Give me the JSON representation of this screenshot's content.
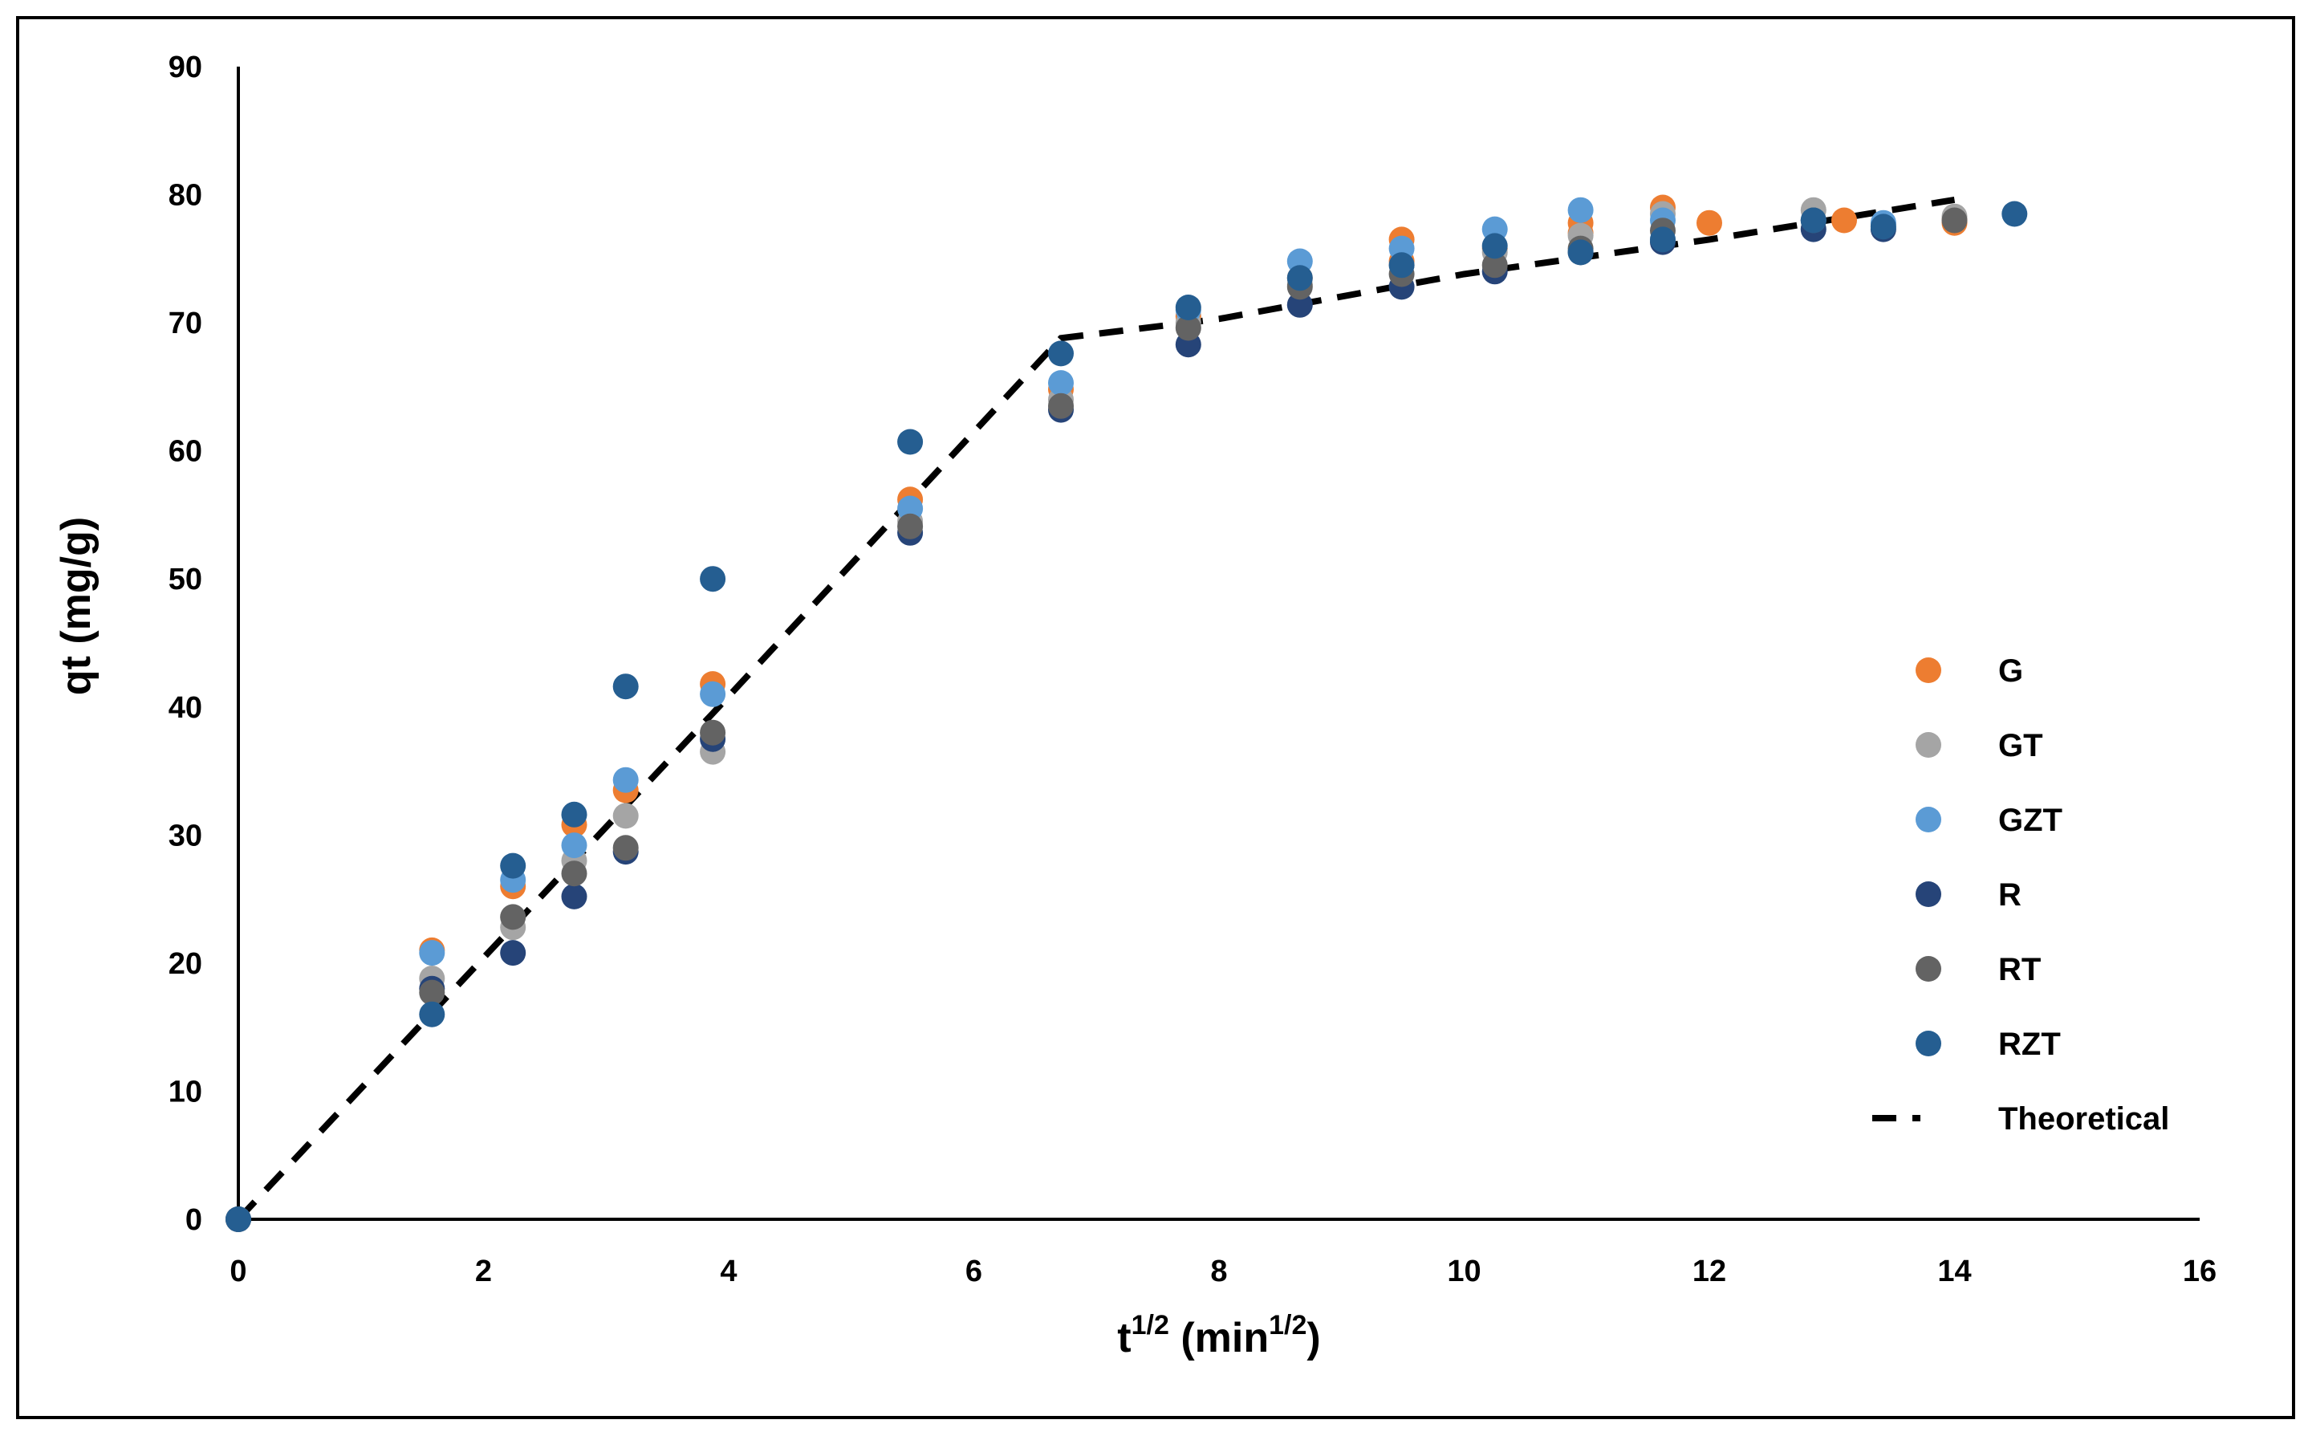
{
  "chart_data": {
    "type": "scatter",
    "title": "",
    "xlabel": {
      "base": "t",
      "base_sup": "1/2",
      "unit_open": " (min",
      "unit_sup": "1/2",
      "unit_close": ")"
    },
    "ylabel": "qt (mg/g)",
    "xlim": [
      0,
      16
    ],
    "ylim": [
      0,
      90
    ],
    "xticks": [
      0,
      2,
      4,
      6,
      8,
      10,
      12,
      14,
      16
    ],
    "yticks": [
      0,
      10,
      20,
      30,
      40,
      50,
      60,
      70,
      80,
      90
    ],
    "grid": false,
    "legend_position": "right",
    "colors": {
      "G": "#ED7D31",
      "GT": "#A5A5A5",
      "GZT": "#5B9BD5",
      "R": "#264478",
      "RT": "#636363",
      "RZT": "#255E91",
      "Theoretical": "#000000"
    },
    "series": [
      {
        "name": "G",
        "kind": "scatter",
        "points": [
          [
            0,
            0
          ],
          [
            1.58,
            21
          ],
          [
            2.24,
            26
          ],
          [
            2.74,
            30.8
          ],
          [
            3.16,
            33.5
          ],
          [
            3.87,
            41.8
          ],
          [
            5.48,
            56.2
          ],
          [
            6.71,
            64.8
          ],
          [
            7.75,
            70.5
          ],
          [
            8.66,
            73.5
          ],
          [
            9.49,
            76.5
          ],
          [
            9.49,
            74.8
          ],
          [
            10.25,
            75.8
          ],
          [
            10.95,
            77.8
          ],
          [
            10.95,
            77
          ],
          [
            11.62,
            79
          ],
          [
            12,
            77.8
          ],
          [
            13.1,
            78
          ],
          [
            14,
            78
          ],
          [
            14,
            77.8
          ]
        ]
      },
      {
        "name": "GT",
        "kind": "scatter",
        "points": [
          [
            0,
            0
          ],
          [
            1.58,
            18.8
          ],
          [
            2.24,
            22.8
          ],
          [
            2.74,
            28
          ],
          [
            3.16,
            31.5
          ],
          [
            3.87,
            36.5
          ],
          [
            5.48,
            54.5
          ],
          [
            6.71,
            64
          ],
          [
            7.75,
            70
          ],
          [
            8.66,
            73
          ],
          [
            9.49,
            74.5
          ],
          [
            10.25,
            75.5
          ],
          [
            10.95,
            76.8
          ],
          [
            11.62,
            78.5
          ],
          [
            12.85,
            78.8
          ],
          [
            14,
            78.3
          ]
        ]
      },
      {
        "name": "GZT",
        "kind": "scatter",
        "points": [
          [
            0,
            0
          ],
          [
            1.58,
            20.8
          ],
          [
            2.24,
            26.5
          ],
          [
            2.74,
            29.2
          ],
          [
            3.16,
            34.3
          ],
          [
            3.87,
            41
          ],
          [
            5.48,
            55.5
          ],
          [
            6.71,
            65.3
          ],
          [
            7.75,
            71
          ],
          [
            8.66,
            74.8
          ],
          [
            9.49,
            75.8
          ],
          [
            10.25,
            77.3
          ],
          [
            10.95,
            78.8
          ],
          [
            11.62,
            78
          ],
          [
            12.85,
            78
          ],
          [
            13.42,
            77.8
          ]
        ]
      },
      {
        "name": "R",
        "kind": "scatter",
        "points": [
          [
            0,
            0
          ],
          [
            1.58,
            18
          ],
          [
            2.24,
            20.8
          ],
          [
            2.74,
            25.2
          ],
          [
            3.16,
            28.7
          ],
          [
            3.87,
            37.5
          ],
          [
            5.48,
            53.6
          ],
          [
            6.71,
            63.2
          ],
          [
            7.75,
            68.3
          ],
          [
            8.66,
            71.4
          ],
          [
            9.49,
            72.8
          ],
          [
            10.25,
            74
          ],
          [
            10.95,
            75.5
          ],
          [
            11.62,
            76.3
          ],
          [
            12.85,
            77.3
          ],
          [
            13.42,
            77.3
          ]
        ]
      },
      {
        "name": "RT",
        "kind": "scatter",
        "points": [
          [
            0,
            0
          ],
          [
            1.58,
            17.7
          ],
          [
            2.24,
            23.6
          ],
          [
            2.74,
            27
          ],
          [
            3.16,
            29
          ],
          [
            3.87,
            38
          ],
          [
            5.48,
            54.1
          ],
          [
            6.71,
            63.5
          ],
          [
            7.75,
            69.6
          ],
          [
            8.66,
            72.8
          ],
          [
            9.49,
            73.8
          ],
          [
            10.25,
            74.5
          ],
          [
            10.95,
            75.8
          ],
          [
            11.62,
            77.2
          ],
          [
            12.85,
            78
          ],
          [
            14,
            78
          ]
        ]
      },
      {
        "name": "RZT",
        "kind": "scatter",
        "points": [
          [
            0,
            0
          ],
          [
            1.58,
            16
          ],
          [
            2.24,
            27.6
          ],
          [
            2.74,
            31.6
          ],
          [
            3.16,
            41.6
          ],
          [
            3.87,
            50
          ],
          [
            5.48,
            60.7
          ],
          [
            6.71,
            67.6
          ],
          [
            7.75,
            71.2
          ],
          [
            8.66,
            73.5
          ],
          [
            9.49,
            74.5
          ],
          [
            10.25,
            76
          ],
          [
            10.95,
            75.5
          ],
          [
            11.62,
            76.5
          ],
          [
            12.85,
            78
          ],
          [
            13.42,
            77.5
          ],
          [
            14.49,
            78.5
          ]
        ]
      },
      {
        "name": "Theoretical",
        "kind": "line",
        "dashed": true,
        "points": [
          [
            0,
            0
          ],
          [
            3.87,
            39.5
          ],
          [
            6.71,
            68.8
          ],
          [
            8,
            70.3
          ],
          [
            10,
            73.8
          ],
          [
            12,
            76.5
          ],
          [
            14,
            79.6
          ]
        ]
      }
    ]
  }
}
